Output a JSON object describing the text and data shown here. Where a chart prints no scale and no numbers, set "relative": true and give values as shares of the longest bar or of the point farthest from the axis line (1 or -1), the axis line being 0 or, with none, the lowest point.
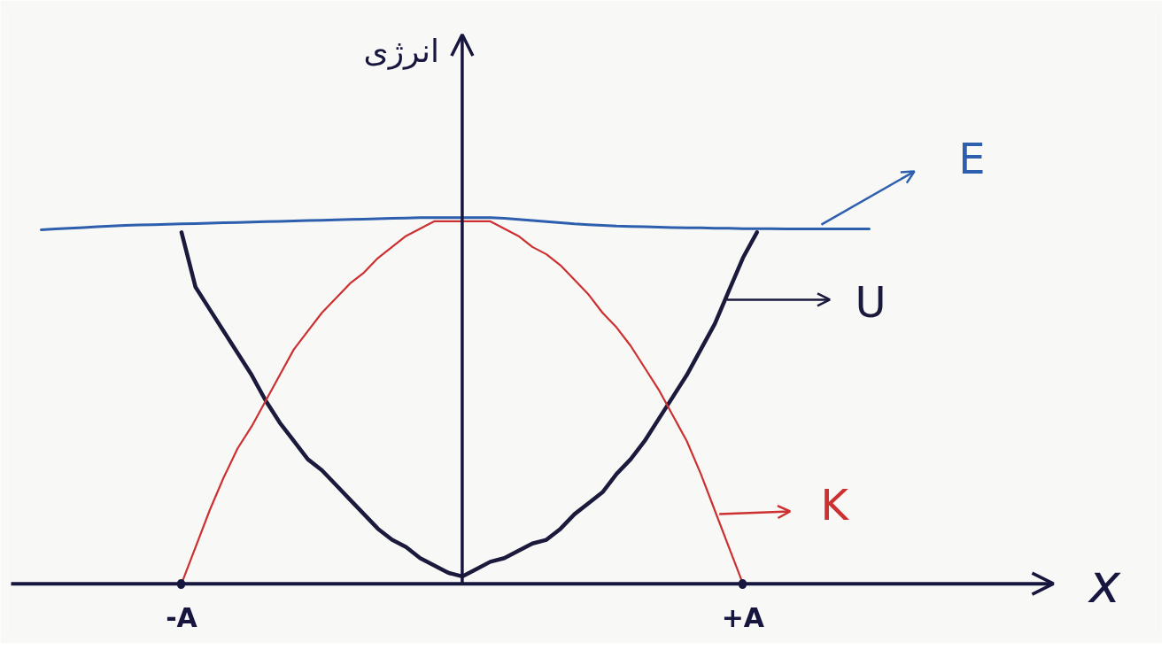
{
  "chart_data": {
    "type": "line",
    "relative": true,
    "xlabel": "x",
    "ylabel": "انرژی",
    "legend": "right",
    "categories": [
      null,
      null,
      null,
      null,
      null,
      null,
      null,
      null,
      null,
      null,
      "-A",
      null,
      null,
      null,
      null,
      null,
      null,
      null,
      null,
      null,
      null,
      null,
      null,
      null,
      null,
      null,
      null,
      null,
      null,
      null,
      null,
      null,
      null,
      null,
      null,
      null,
      null,
      null,
      null,
      null,
      null,
      null,
      null,
      null,
      null,
      null,
      null,
      null,
      null,
      null,
      "+A",
      null,
      null,
      null,
      null,
      null,
      null,
      null,
      null,
      null
    ],
    "series": [
      {
        "name": "E",
        "color": "#2d5fae",
        "values": [
          0.967,
          0.969,
          0.971,
          0.973,
          0.975,
          0.977,
          0.979,
          0.98,
          0.981,
          0.982,
          0.983,
          0.984,
          0.985,
          0.986,
          0.987,
          0.988,
          0.989,
          0.99,
          0.991,
          0.992,
          0.993,
          0.994,
          0.995,
          0.996,
          0.997,
          0.998,
          0.999,
          1.0,
          1.0,
          1.0,
          1.0,
          1.0,
          1.0,
          0.998,
          0.995,
          0.992,
          0.989,
          0.986,
          0.983,
          0.981,
          0.979,
          0.977,
          0.976,
          0.975,
          0.974,
          0.973,
          0.972,
          0.972,
          0.971,
          0.971,
          0.97,
          0.97,
          0.97,
          0.969,
          0.969,
          0.969,
          0.969,
          0.969,
          0.969,
          0.969
        ]
      },
      {
        "name": "U",
        "color": "#1b1a3c",
        "values": [
          null,
          null,
          null,
          null,
          null,
          null,
          null,
          null,
          null,
          null,
          0.96,
          0.81,
          0.75,
          0.69,
          0.63,
          0.57,
          0.5,
          0.44,
          0.39,
          0.34,
          0.31,
          0.27,
          0.23,
          0.19,
          0.15,
          0.12,
          0.1,
          0.07,
          0.05,
          0.03,
          0.02,
          0.04,
          0.06,
          0.07,
          0.09,
          0.11,
          0.12,
          0.15,
          0.19,
          0.22,
          0.25,
          0.3,
          0.34,
          0.39,
          0.45,
          0.51,
          0.57,
          0.64,
          0.71,
          0.8,
          0.89,
          0.96,
          null,
          null,
          null,
          null,
          null,
          null,
          null,
          null
        ]
      },
      {
        "name": "K",
        "color": "#cc3030",
        "values": [
          null,
          null,
          null,
          null,
          null,
          null,
          null,
          null,
          null,
          null,
          0,
          0.1,
          0.2,
          0.29,
          0.37,
          0.43,
          0.5,
          0.57,
          0.64,
          0.69,
          0.74,
          0.78,
          0.82,
          0.85,
          0.89,
          0.92,
          0.95,
          0.97,
          0.99,
          0.99,
          0.99,
          0.99,
          0.99,
          0.97,
          0.95,
          0.92,
          0.9,
          0.87,
          0.83,
          0.79,
          0.74,
          0.7,
          0.65,
          0.59,
          0.53,
          0.46,
          0.39,
          0.3,
          0.2,
          0.1,
          0,
          null,
          null,
          null,
          null,
          null,
          null,
          null,
          null,
          null
        ]
      }
    ]
  }
}
